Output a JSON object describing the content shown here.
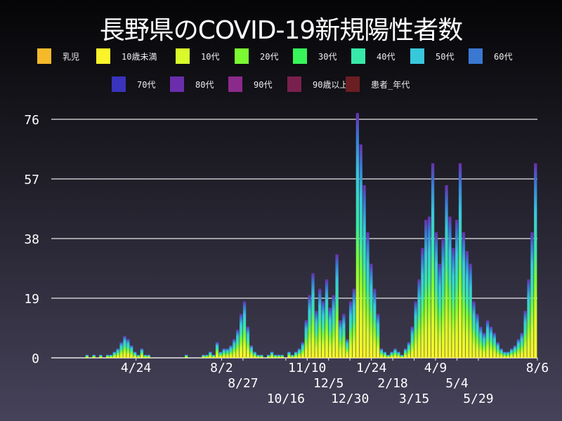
{
  "chart_data": {
    "type": "bar",
    "stacked": true,
    "title": "長野県のCOVID-19新規陽性者数",
    "xlabel": "",
    "ylabel": "",
    "ylim": [
      0,
      76
    ],
    "yticks": [
      0,
      19,
      38,
      57,
      76
    ],
    "xlim": [
      "2020-01-16",
      "2021-08-06"
    ],
    "xticks": [
      {
        "label": "4/24",
        "date": "2020-04-24"
      },
      {
        "label": "8/2",
        "date": "2020-08-02"
      },
      {
        "label": "8/27",
        "date": "2020-08-27"
      },
      {
        "label": "10/16",
        "date": "2020-10-16"
      },
      {
        "label": "11/10",
        "date": "2020-11-10"
      },
      {
        "label": "12/5",
        "date": "2020-12-05"
      },
      {
        "label": "12/30",
        "date": "2020-12-30"
      },
      {
        "label": "1/24",
        "date": "2021-01-24"
      },
      {
        "label": "2/18",
        "date": "2021-02-18"
      },
      {
        "label": "3/15",
        "date": "2021-03-15"
      },
      {
        "label": "4/9",
        "date": "2021-04-09"
      },
      {
        "label": "5/4",
        "date": "2021-05-04"
      },
      {
        "label": "5/29",
        "date": "2021-05-29"
      },
      {
        "label": "8/6",
        "date": "2021-08-06"
      }
    ],
    "grid": true,
    "legend_position": "top",
    "legend": [
      {
        "name": "乳児",
        "color": "#f6b92b"
      },
      {
        "name": "10歳未満",
        "color": "#fbf42b"
      },
      {
        "name": "10代",
        "color": "#d9fa2b"
      },
      {
        "name": "20代",
        "color": "#7bfa33"
      },
      {
        "name": "30代",
        "color": "#38f55a"
      },
      {
        "name": "40代",
        "color": "#38e8a8"
      },
      {
        "name": "50代",
        "color": "#38c8dc"
      },
      {
        "name": "60代",
        "color": "#3a78d2"
      },
      {
        "name": "70代",
        "color": "#3a33bc"
      },
      {
        "name": "80代",
        "color": "#6a2eac"
      },
      {
        "name": "90代",
        "color": "#8c2a8c"
      },
      {
        "name": "90歳以上",
        "color": "#7a204e"
      },
      {
        "name": "患者_年代",
        "color": "#6a1e22"
      }
    ],
    "x": [
      "2020-01-16",
      "2020-01-20",
      "2020-01-24",
      "2020-01-28",
      "2020-02-01",
      "2020-02-05",
      "2020-02-09",
      "2020-02-13",
      "2020-02-17",
      "2020-02-21",
      "2020-02-25",
      "2020-02-29",
      "2020-03-04",
      "2020-03-08",
      "2020-03-12",
      "2020-03-16",
      "2020-03-20",
      "2020-03-24",
      "2020-03-28",
      "2020-04-01",
      "2020-04-05",
      "2020-04-09",
      "2020-04-13",
      "2020-04-17",
      "2020-04-21",
      "2020-04-25",
      "2020-04-29",
      "2020-05-03",
      "2020-05-07",
      "2020-05-11",
      "2020-05-15",
      "2020-05-19",
      "2020-05-23",
      "2020-05-27",
      "2020-05-31",
      "2020-06-04",
      "2020-06-08",
      "2020-06-12",
      "2020-06-16",
      "2020-06-20",
      "2020-06-24",
      "2020-06-28",
      "2020-07-02",
      "2020-07-06",
      "2020-07-10",
      "2020-07-14",
      "2020-07-18",
      "2020-07-22",
      "2020-07-26",
      "2020-07-30",
      "2020-08-03",
      "2020-08-07",
      "2020-08-11",
      "2020-08-15",
      "2020-08-19",
      "2020-08-23",
      "2020-08-27",
      "2020-08-31",
      "2020-09-04",
      "2020-09-08",
      "2020-09-12",
      "2020-09-16",
      "2020-09-20",
      "2020-09-24",
      "2020-09-28",
      "2020-10-02",
      "2020-10-06",
      "2020-10-10",
      "2020-10-14",
      "2020-10-18",
      "2020-10-22",
      "2020-10-26",
      "2020-10-30",
      "2020-11-03",
      "2020-11-07",
      "2020-11-11",
      "2020-11-15",
      "2020-11-19",
      "2020-11-23",
      "2020-11-27",
      "2020-12-01",
      "2020-12-05",
      "2020-12-09",
      "2020-12-13",
      "2020-12-17",
      "2020-12-21",
      "2020-12-25",
      "2020-12-29",
      "2021-01-02",
      "2021-01-06",
      "2021-01-10",
      "2021-01-14",
      "2021-01-18",
      "2021-01-22",
      "2021-01-26",
      "2021-01-30",
      "2021-02-03",
      "2021-02-07",
      "2021-02-11",
      "2021-02-15",
      "2021-02-19",
      "2021-02-23",
      "2021-02-27",
      "2021-03-03",
      "2021-03-07",
      "2021-03-11",
      "2021-03-15",
      "2021-03-19",
      "2021-03-23",
      "2021-03-27",
      "2021-03-31",
      "2021-04-04",
      "2021-04-08",
      "2021-04-12",
      "2021-04-16",
      "2021-04-20",
      "2021-04-24",
      "2021-04-28",
      "2021-05-02",
      "2021-05-06",
      "2021-05-10",
      "2021-05-14",
      "2021-05-18",
      "2021-05-22",
      "2021-05-26",
      "2021-05-30",
      "2021-06-03",
      "2021-06-07",
      "2021-06-11",
      "2021-06-15",
      "2021-06-19",
      "2021-06-23",
      "2021-06-27",
      "2021-07-01",
      "2021-07-05",
      "2021-07-09",
      "2021-07-13",
      "2021-07-17",
      "2021-07-21",
      "2021-07-25",
      "2021-07-29",
      "2021-08-02"
    ],
    "values": [
      0,
      0,
      0,
      0,
      0,
      0,
      0,
      0,
      0,
      0,
      1,
      0,
      1,
      0,
      1,
      0,
      1,
      1,
      2,
      3,
      5,
      7,
      6,
      4,
      2,
      1,
      3,
      1,
      1,
      0,
      0,
      0,
      0,
      0,
      0,
      0,
      0,
      0,
      0,
      1,
      0,
      0,
      0,
      0,
      1,
      1,
      2,
      1,
      5,
      2,
      3,
      3,
      4,
      6,
      9,
      14,
      18,
      10,
      4,
      2,
      1,
      1,
      0,
      1,
      2,
      1,
      1,
      1,
      0,
      2,
      1,
      2,
      3,
      5,
      12,
      20,
      27,
      15,
      22,
      18,
      25,
      16,
      20,
      33,
      12,
      14,
      6,
      18,
      22,
      78,
      68,
      55,
      40,
      30,
      22,
      14,
      3,
      2,
      1,
      2,
      3,
      2,
      1,
      3,
      5,
      10,
      18,
      25,
      35,
      44,
      45,
      62,
      40,
      30,
      38,
      55,
      45,
      35,
      44,
      62,
      40,
      34,
      30,
      18,
      14,
      10,
      8,
      12,
      10,
      8,
      5,
      3,
      2,
      2,
      3,
      4,
      6,
      8,
      15,
      25,
      40,
      62
    ]
  }
}
